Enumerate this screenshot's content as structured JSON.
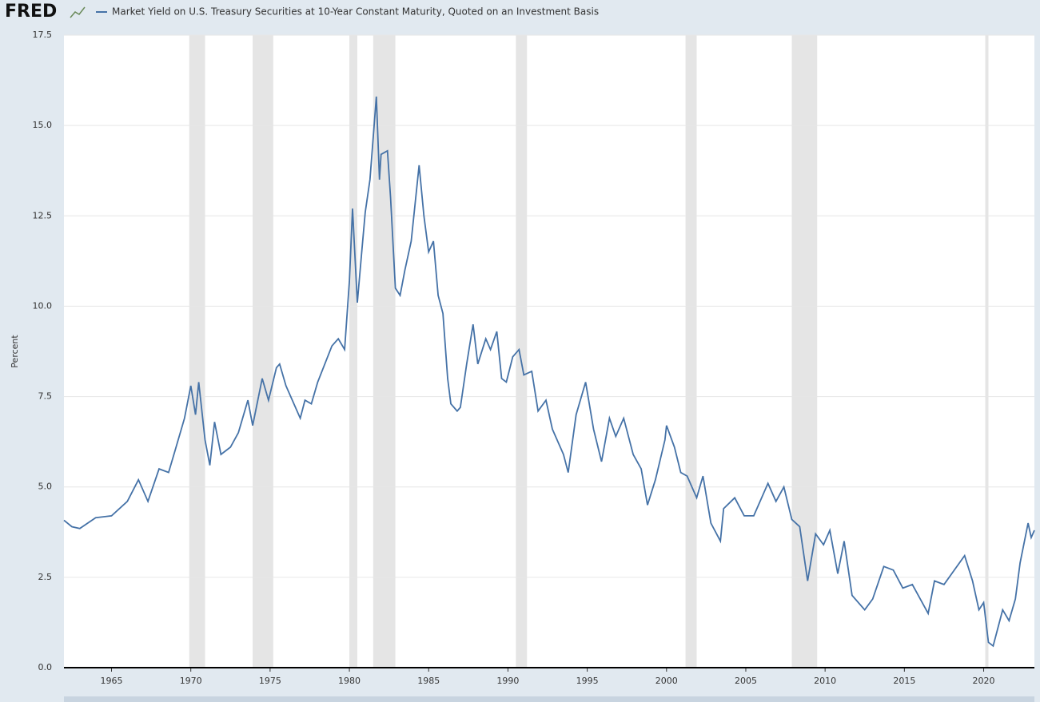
{
  "chart_data": {
    "type": "line",
    "logo": "FRED",
    "ylabel": "Percent",
    "xlim": [
      1962,
      2023.2
    ],
    "xticks": [
      1965,
      1970,
      1975,
      1980,
      1985,
      1990,
      1995,
      2000,
      2005,
      2010,
      2015,
      2020
    ],
    "ylim": [
      0,
      17.5
    ],
    "yticks": [
      {
        "value": 0,
        "label": "0.0"
      },
      2.5,
      {
        "value": 5,
        "label": "5.0"
      },
      7.5,
      {
        "value": 10,
        "label": "10.0"
      },
      12.5,
      {
        "value": 15,
        "label": "15.0"
      },
      17.5
    ],
    "grid": true,
    "recessions": [
      [
        1969.9,
        1970.9
      ],
      [
        1973.9,
        1975.2
      ],
      [
        1980.0,
        1980.5
      ],
      [
        1981.5,
        1982.9
      ],
      [
        1990.5,
        1991.2
      ],
      [
        2001.2,
        2001.9
      ],
      [
        2007.9,
        2009.5
      ],
      [
        2020.1,
        2020.3
      ]
    ],
    "x": [
      1962.0,
      1962.5,
      1963.0,
      1964.0,
      1965.0,
      1966.0,
      1966.7,
      1967.3,
      1968.0,
      1968.6,
      1969.0,
      1969.6,
      1970.0,
      1970.3,
      1970.5,
      1970.9,
      1971.2,
      1971.5,
      1971.9,
      1972.5,
      1973.0,
      1973.6,
      1973.9,
      1974.5,
      1974.9,
      1975.4,
      1975.6,
      1976.0,
      1976.9,
      1977.2,
      1977.6,
      1978.0,
      1978.9,
      1979.3,
      1979.7,
      1980.0,
      1980.2,
      1980.5,
      1980.8,
      1981.0,
      1981.3,
      1981.7,
      1981.9,
      1982.0,
      1982.4,
      1982.6,
      1982.9,
      1983.2,
      1983.5,
      1983.9,
      1984.4,
      1984.7,
      1985.0,
      1985.3,
      1985.6,
      1985.9,
      1986.2,
      1986.4,
      1986.8,
      1987.0,
      1987.4,
      1987.8,
      1988.1,
      1988.6,
      1988.9,
      1989.3,
      1989.6,
      1989.9,
      1990.3,
      1990.7,
      1991.0,
      1991.5,
      1991.9,
      1992.4,
      1992.8,
      1993.5,
      1993.8,
      1994.3,
      1994.9,
      1995.4,
      1995.9,
      1996.4,
      1996.8,
      1997.3,
      1997.9,
      1998.4,
      1998.8,
      1999.3,
      1999.9,
      2000.0,
      2000.5,
      2000.9,
      2001.3,
      2001.9,
      2002.3,
      2002.8,
      2003.4,
      2003.6,
      2004.3,
      2004.9,
      2005.5,
      2006.4,
      2006.9,
      2007.4,
      2007.9,
      2008.4,
      2008.9,
      2009.4,
      2009.9,
      2010.3,
      2010.8,
      2011.2,
      2011.7,
      2012.5,
      2013.0,
      2013.7,
      2014.3,
      2014.9,
      2015.5,
      2016.5,
      2016.9,
      2017.5,
      2018.8,
      2019.3,
      2019.7,
      2020.0,
      2020.3,
      2020.6,
      2021.2,
      2021.6,
      2022.0,
      2022.3,
      2022.8,
      2023.0,
      2023.2
    ],
    "series": [
      {
        "name": "Market Yield on U.S. Treasury Securities at 10-Year Constant Maturity, Quoted on an Investment Basis",
        "color": "#4572a7",
        "values": [
          4.08,
          3.9,
          3.85,
          4.15,
          4.2,
          4.6,
          5.2,
          4.6,
          5.5,
          5.4,
          6.0,
          6.9,
          7.8,
          7.0,
          7.9,
          6.3,
          5.6,
          6.8,
          5.9,
          6.1,
          6.5,
          7.4,
          6.7,
          8.0,
          7.4,
          8.3,
          8.4,
          7.8,
          6.9,
          7.4,
          7.3,
          7.9,
          8.9,
          9.1,
          8.8,
          10.7,
          12.7,
          10.1,
          11.6,
          12.6,
          13.5,
          15.8,
          13.5,
          14.2,
          14.3,
          13.0,
          10.5,
          10.3,
          11.0,
          11.8,
          13.9,
          12.5,
          11.5,
          11.8,
          10.3,
          9.8,
          8.0,
          7.3,
          7.1,
          7.2,
          8.4,
          9.5,
          8.4,
          9.1,
          8.8,
          9.3,
          8.0,
          7.9,
          8.6,
          8.8,
          8.1,
          8.2,
          7.1,
          7.4,
          6.6,
          5.9,
          5.4,
          7.0,
          7.9,
          6.6,
          5.7,
          6.9,
          6.4,
          6.9,
          5.9,
          5.5,
          4.5,
          5.2,
          6.3,
          6.7,
          6.1,
          5.4,
          5.3,
          4.7,
          5.3,
          4.0,
          3.5,
          4.4,
          4.7,
          4.2,
          4.2,
          5.1,
          4.6,
          5.0,
          4.1,
          3.9,
          2.4,
          3.7,
          3.4,
          3.8,
          2.6,
          3.5,
          2.0,
          1.6,
          1.9,
          2.8,
          2.7,
          2.2,
          2.3,
          1.5,
          2.4,
          2.3,
          3.1,
          2.4,
          1.6,
          1.8,
          0.7,
          0.6,
          1.6,
          1.3,
          1.9,
          2.9,
          4.0,
          3.6,
          3.8
        ]
      }
    ]
  }
}
